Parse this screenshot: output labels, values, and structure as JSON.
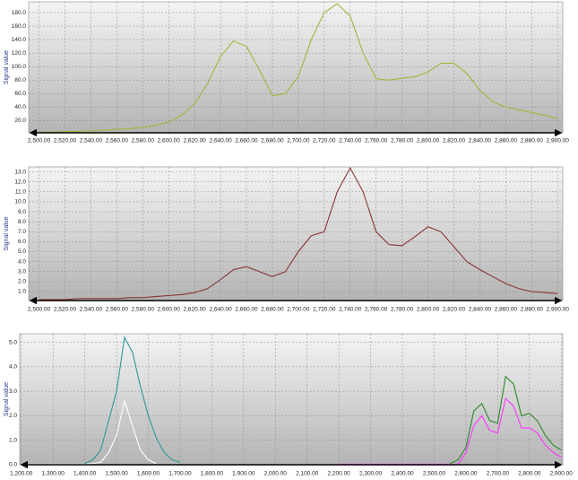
{
  "chart_data": [
    {
      "type": "line",
      "ylabel": "Signal value",
      "x": [
        2500,
        2510,
        2520,
        2530,
        2540,
        2550,
        2560,
        2570,
        2580,
        2590,
        2600,
        2610,
        2620,
        2630,
        2640,
        2650,
        2660,
        2670,
        2680,
        2690,
        2700,
        2710,
        2720,
        2730,
        2740,
        2750,
        2760,
        2770,
        2780,
        2790,
        2800,
        2810,
        2820,
        2830,
        2840,
        2850,
        2860,
        2870,
        2880,
        2890,
        2900
      ],
      "values": [
        3,
        3,
        4,
        4,
        5,
        6,
        7,
        8,
        10,
        13,
        18,
        28,
        45,
        75,
        115,
        138,
        130,
        95,
        57,
        60,
        85,
        140,
        180,
        193,
        175,
        120,
        82,
        80,
        83,
        85,
        92,
        105,
        105,
        90,
        65,
        48,
        40,
        36,
        32,
        28,
        23
      ],
      "color": "#a9b23a",
      "xlim": [
        2492,
        2904
      ],
      "ylim": [
        2,
        196
      ],
      "xticks": [
        {
          "value": 2500,
          "label": "2,500.00"
        },
        {
          "value": 2520,
          "label": "2,520.00"
        },
        {
          "value": 2540,
          "label": "2,540.00"
        },
        {
          "value": 2560,
          "label": "2,560.00"
        },
        {
          "value": 2580,
          "label": "2,580.00"
        },
        {
          "value": 2600,
          "label": "2,600.00"
        },
        {
          "value": 2620,
          "label": "2,620.00"
        },
        {
          "value": 2640,
          "label": "2,640.00"
        },
        {
          "value": 2660,
          "label": "2,660.00"
        },
        {
          "value": 2680,
          "label": "2,680.00"
        },
        {
          "value": 2700,
          "label": "2,700.00"
        },
        {
          "value": 2720,
          "label": "2,720.00"
        },
        {
          "value": 2740,
          "label": "2,740.00"
        },
        {
          "value": 2760,
          "label": "2,760.00"
        },
        {
          "value": 2780,
          "label": "2,780.00"
        },
        {
          "value": 2800,
          "label": "2,800.00"
        },
        {
          "value": 2820,
          "label": "2,820.00"
        },
        {
          "value": 2840,
          "label": "2,840.00"
        },
        {
          "value": 2860,
          "label": "2,860.00"
        },
        {
          "value": 2880,
          "label": "2,880.00"
        },
        {
          "value": 2900,
          "label": "2,900.00"
        }
      ],
      "yticks": [
        {
          "value": 20,
          "label": "20.0"
        },
        {
          "value": 40,
          "label": "40.0"
        },
        {
          "value": 60,
          "label": "60.0"
        },
        {
          "value": 80,
          "label": "80.0"
        },
        {
          "value": 100,
          "label": "100.0"
        },
        {
          "value": 120,
          "label": "120.0"
        },
        {
          "value": 140,
          "label": "140.0"
        },
        {
          "value": 160,
          "label": "160.0"
        },
        {
          "value": 180,
          "label": "180.0"
        }
      ],
      "grid": true
    },
    {
      "type": "line",
      "ylabel": "Signal value",
      "x": [
        2500,
        2510,
        2520,
        2530,
        2540,
        2550,
        2560,
        2570,
        2580,
        2590,
        2600,
        2610,
        2620,
        2630,
        2640,
        2650,
        2660,
        2670,
        2680,
        2690,
        2700,
        2710,
        2720,
        2730,
        2740,
        2750,
        2760,
        2770,
        2780,
        2790,
        2800,
        2810,
        2820,
        2830,
        2840,
        2850,
        2860,
        2870,
        2880,
        2890,
        2900
      ],
      "values": [
        0.2,
        0.2,
        0.2,
        0.3,
        0.3,
        0.3,
        0.3,
        0.4,
        0.4,
        0.5,
        0.6,
        0.7,
        0.9,
        1.3,
        2.2,
        3.2,
        3.5,
        3.0,
        2.5,
        3.0,
        5.0,
        6.6,
        7.0,
        11.0,
        13.4,
        11.0,
        7.0,
        5.7,
        5.6,
        6.5,
        7.5,
        7.0,
        5.5,
        4.0,
        3.2,
        2.5,
        1.8,
        1.3,
        1.0,
        0.9,
        0.8
      ],
      "color": "#8b3434",
      "xlim": [
        2492,
        2904
      ],
      "ylim": [
        0.1,
        13.5
      ],
      "xticks": [
        {
          "value": 2500,
          "label": "2,500.00"
        },
        {
          "value": 2520,
          "label": "2,520.00"
        },
        {
          "value": 2540,
          "label": "2,540.00"
        },
        {
          "value": 2560,
          "label": "2,560.00"
        },
        {
          "value": 2580,
          "label": "2,580.00"
        },
        {
          "value": 2600,
          "label": "2,600.00"
        },
        {
          "value": 2620,
          "label": "2,620.00"
        },
        {
          "value": 2640,
          "label": "2,640.00"
        },
        {
          "value": 2660,
          "label": "2,660.00"
        },
        {
          "value": 2680,
          "label": "2,680.00"
        },
        {
          "value": 2700,
          "label": "2,700.00"
        },
        {
          "value": 2720,
          "label": "2,720.00"
        },
        {
          "value": 2740,
          "label": "2,740.00"
        },
        {
          "value": 2760,
          "label": "2,760.00"
        },
        {
          "value": 2780,
          "label": "2,780.00"
        },
        {
          "value": 2800,
          "label": "2,800.00"
        },
        {
          "value": 2820,
          "label": "2,820.00"
        },
        {
          "value": 2840,
          "label": "2,840.00"
        },
        {
          "value": 2860,
          "label": "2,860.00"
        },
        {
          "value": 2880,
          "label": "2,880.00"
        },
        {
          "value": 2900,
          "label": "2,900.00"
        }
      ],
      "yticks": [
        {
          "value": 1,
          "label": "1.0"
        },
        {
          "value": 2,
          "label": "2.0"
        },
        {
          "value": 3,
          "label": "3.0"
        },
        {
          "value": 4,
          "label": "4.0"
        },
        {
          "value": 5,
          "label": "5.0"
        },
        {
          "value": 6,
          "label": "6.0"
        },
        {
          "value": 7,
          "label": "7.0"
        },
        {
          "value": 8,
          "label": "8.0"
        },
        {
          "value": 9,
          "label": "9.0"
        },
        {
          "value": 10,
          "label": "10.0"
        },
        {
          "value": 11,
          "label": "11.0"
        },
        {
          "value": 12,
          "label": "12.0"
        },
        {
          "value": 13,
          "label": "13.0"
        }
      ],
      "grid": true
    },
    {
      "type": "line",
      "ylabel": "Signal value",
      "x": [
        1200,
        1225,
        1250,
        1275,
        1300,
        1325,
        1350,
        1375,
        1400,
        1425,
        1450,
        1475,
        1500,
        1525,
        1550,
        1575,
        1600,
        1625,
        1650,
        1675,
        1700,
        1725,
        1750,
        1775,
        1800,
        1825,
        1850,
        1875,
        1900,
        1925,
        1950,
        1975,
        2000,
        2025,
        2050,
        2075,
        2100,
        2125,
        2150,
        2175,
        2200,
        2225,
        2250,
        2275,
        2300,
        2325,
        2350,
        2375,
        2400,
        2425,
        2450,
        2475,
        2500,
        2525,
        2550,
        2575,
        2600,
        2625,
        2650,
        2675,
        2700,
        2725,
        2750,
        2775,
        2800,
        2825,
        2850,
        2875,
        2900
      ],
      "series": [
        {
          "color": "#ffffff",
          "values": [
            0.02,
            0.02,
            0.02,
            0.02,
            0.02,
            0.02,
            0.02,
            0.02,
            0.02,
            0.05,
            0.1,
            0.5,
            1.2,
            2.6,
            1.6,
            0.6,
            0.2,
            0.05,
            null,
            null,
            null,
            null,
            null,
            null,
            null,
            null,
            null,
            null,
            null,
            null,
            null,
            null,
            null,
            null,
            null,
            null,
            null,
            null,
            null,
            null,
            null,
            null,
            null,
            null,
            null,
            null,
            null,
            null,
            null,
            null,
            null,
            null,
            null,
            null,
            null,
            null,
            null,
            null,
            null,
            null,
            null,
            null,
            null,
            null,
            null,
            null,
            null,
            null,
            null
          ]
        },
        {
          "color": "#2a9a98",
          "values": [
            null,
            null,
            null,
            null,
            null,
            null,
            null,
            null,
            0.05,
            0.2,
            0.6,
            1.8,
            3.0,
            5.2,
            4.6,
            3.2,
            2.0,
            1.1,
            0.5,
            0.2,
            0.1,
            null,
            null,
            null,
            null,
            null,
            null,
            null,
            null,
            null,
            null,
            null,
            null,
            null,
            null,
            null,
            null,
            null,
            null,
            null,
            null,
            null,
            null,
            null,
            null,
            null,
            null,
            null,
            null,
            null,
            null,
            null,
            null,
            null,
            null,
            null,
            null,
            null,
            null,
            null,
            null,
            null,
            null,
            null,
            null,
            null,
            null,
            null,
            null
          ]
        },
        {
          "color": "#ff33ff",
          "values": [
            null,
            null,
            null,
            null,
            null,
            null,
            null,
            null,
            null,
            null,
            null,
            null,
            null,
            null,
            null,
            null,
            null,
            null,
            null,
            null,
            null,
            null,
            null,
            null,
            null,
            null,
            null,
            null,
            null,
            null,
            null,
            null,
            null,
            null,
            null,
            null,
            null,
            null,
            null,
            null,
            0.02,
            0.02,
            0.02,
            0.02,
            0.02,
            0.02,
            0.02,
            0.02,
            0.02,
            0.02,
            0.02,
            0.02,
            0.02,
            0.02,
            0.02,
            0.02,
            0.5,
            1.6,
            2.0,
            1.4,
            1.3,
            2.7,
            2.4,
            1.5,
            1.5,
            1.3,
            0.8,
            0.5,
            0.3
          ]
        },
        {
          "color": "#2a8a2a",
          "values": [
            null,
            null,
            null,
            null,
            null,
            null,
            null,
            null,
            null,
            null,
            null,
            null,
            null,
            null,
            null,
            null,
            null,
            null,
            null,
            null,
            null,
            null,
            null,
            null,
            null,
            null,
            null,
            null,
            null,
            null,
            null,
            null,
            null,
            null,
            null,
            null,
            null,
            null,
            null,
            null,
            null,
            null,
            null,
            null,
            null,
            null,
            null,
            null,
            null,
            null,
            null,
            null,
            null,
            null,
            0.05,
            0.2,
            0.7,
            2.2,
            2.5,
            1.8,
            1.7,
            3.6,
            3.3,
            2.0,
            2.1,
            1.8,
            1.2,
            0.8,
            0.6
          ]
        }
      ],
      "xlim": [
        1195,
        2905
      ],
      "ylim": [
        0,
        5.35
      ],
      "xticks": [
        {
          "value": 1200,
          "label": "1,200.00"
        },
        {
          "value": 1300,
          "label": "1,300.00"
        },
        {
          "value": 1400,
          "label": "1,400.00"
        },
        {
          "value": 1500,
          "label": "1,500.00"
        },
        {
          "value": 1600,
          "label": "1,600.00"
        },
        {
          "value": 1700,
          "label": "1,700.00"
        },
        {
          "value": 1800,
          "label": "1,800.00"
        },
        {
          "value": 1900,
          "label": "1,900.00"
        },
        {
          "value": 2000,
          "label": "2,000.00"
        },
        {
          "value": 2100,
          "label": "2,100.00"
        },
        {
          "value": 2200,
          "label": "2,200.00"
        },
        {
          "value": 2300,
          "label": "2,300.00"
        },
        {
          "value": 2400,
          "label": "2,400.00"
        },
        {
          "value": 2500,
          "label": "2,500.00"
        },
        {
          "value": 2600,
          "label": "2,600.00"
        },
        {
          "value": 2700,
          "label": "2,700.00"
        },
        {
          "value": 2800,
          "label": "2,800.00"
        },
        {
          "value": 2900,
          "label": "2,900.00"
        }
      ],
      "yticks": [
        {
          "value": 0,
          "label": "0.0"
        },
        {
          "value": 1,
          "label": "1.0"
        },
        {
          "value": 2,
          "label": "2.0"
        },
        {
          "value": 3,
          "label": "3.0"
        },
        {
          "value": 4,
          "label": "4.0"
        },
        {
          "value": 5,
          "label": "5.0"
        }
      ],
      "grid": true
    }
  ]
}
